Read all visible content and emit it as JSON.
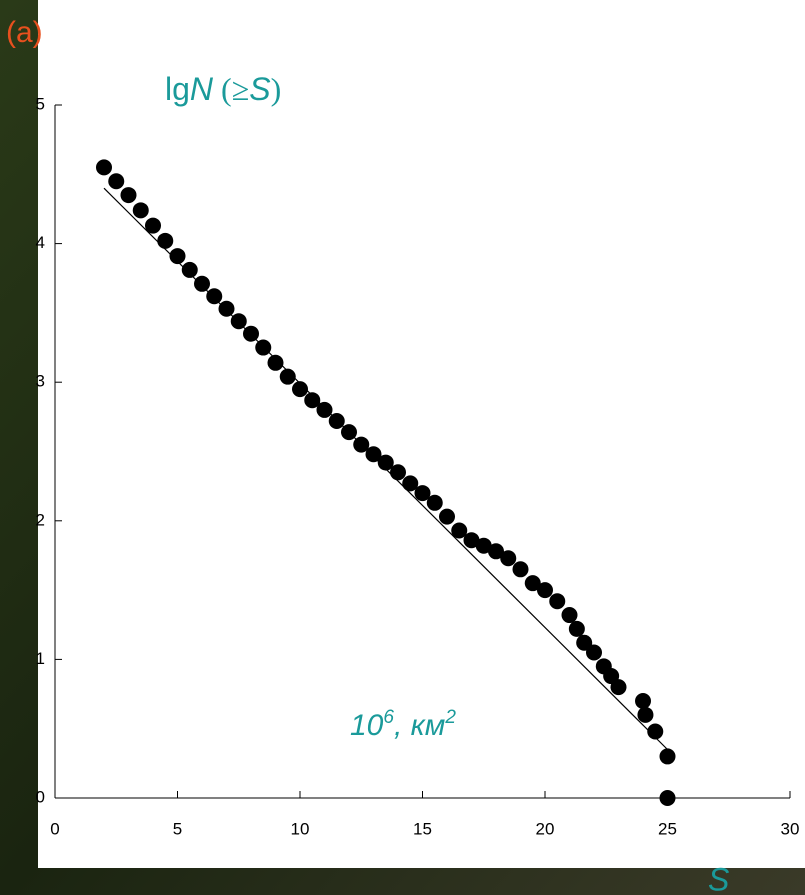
{
  "chart_data": {
    "type": "scatter",
    "panel_label": "(a)",
    "y_label_parts": [
      "lg",
      "N",
      " (≥",
      "S",
      ")"
    ],
    "unit_parts": [
      "10",
      "6",
      ", км",
      "2"
    ],
    "x_label": "S",
    "xlim": [
      0,
      30
    ],
    "xticks": [
      0,
      5,
      10,
      15,
      20,
      25,
      30
    ],
    "ylim": [
      0,
      5
    ],
    "yticks": [
      0,
      1,
      2,
      3,
      4,
      5
    ],
    "series": [
      {
        "color": "#000000",
        "x": [
          2,
          2.5,
          3,
          3.5,
          4,
          4.5,
          5,
          5.5,
          6,
          6.5,
          7,
          7.5,
          8,
          8.5,
          9,
          9.5,
          10,
          10.5,
          11,
          11.5,
          12,
          12.5,
          13,
          13.5,
          14,
          14.5,
          15,
          15.5,
          16,
          16.5,
          17,
          17.5,
          18,
          18.5,
          19,
          19.5,
          20,
          20.5,
          21,
          21.3,
          21.6,
          22,
          22.4,
          22.7,
          23,
          24,
          24.1,
          24.5,
          25,
          25
        ],
        "values": [
          4.55,
          4.45,
          4.35,
          4.24,
          4.13,
          4.02,
          3.91,
          3.81,
          3.71,
          3.62,
          3.53,
          3.44,
          3.35,
          3.25,
          3.14,
          3.04,
          2.95,
          2.87,
          2.8,
          2.72,
          2.64,
          2.55,
          2.48,
          2.42,
          2.35,
          2.27,
          2.2,
          2.13,
          2.03,
          1.93,
          1.86,
          1.82,
          1.78,
          1.73,
          1.65,
          1.55,
          1.5,
          1.42,
          1.32,
          1.22,
          1.12,
          1.05,
          0.95,
          0.88,
          0.8,
          0.7,
          0.6,
          0.48,
          0.3,
          0
        ]
      },
      {
        "type": "line",
        "color": "#000000",
        "x": [
          2,
          25
        ],
        "values": [
          4.4,
          0.35
        ]
      }
    ]
  }
}
